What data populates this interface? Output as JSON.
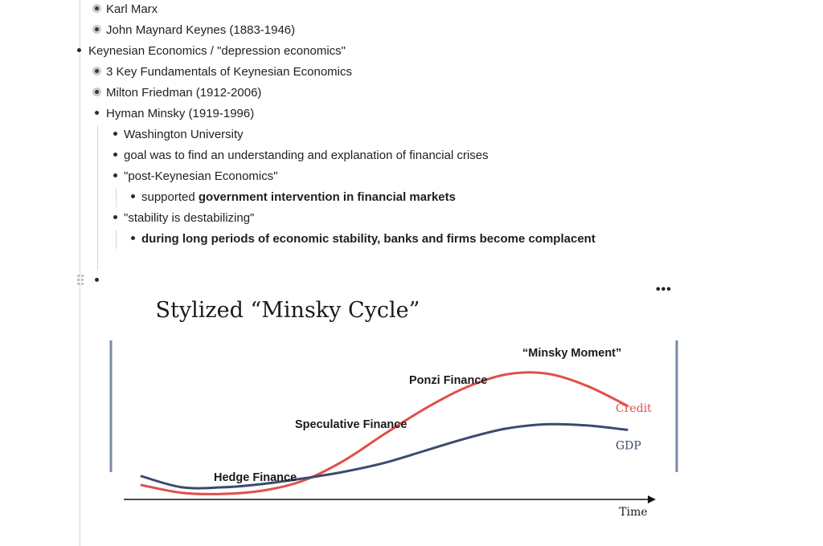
{
  "outline": {
    "items": [
      {
        "text": "Karl Marx",
        "collapsed": true
      },
      {
        "text": "John Maynard Keynes (1883-1946)",
        "collapsed": true
      },
      {
        "text": "Keynesian Economics / \"depression economics\"",
        "collapsed": false
      },
      {
        "text": "3 Key Fundamentals of Keynesian Economics",
        "collapsed": true
      },
      {
        "text": "Milton Friedman (1912-2006)",
        "collapsed": true
      },
      {
        "text": "Hyman Minsky (1919-1996)",
        "collapsed": false
      },
      {
        "text": "Washington University"
      },
      {
        "text": "goal was to find an understanding and explanation of financial crises"
      },
      {
        "text": "\"post-Keynesian Economics\""
      },
      {
        "prefix": "supported ",
        "bold": "government intervention in financial markets"
      },
      {
        "text": "\"stability is destabilizing\""
      },
      {
        "bold": "during long periods of economic stability, banks and firms become complacent"
      }
    ],
    "more_menu_label": "•••"
  },
  "chart_data": {
    "type": "line",
    "title": "Stylized “Minsky Cycle”",
    "xlabel": "Time",
    "ylabel": "",
    "grid": false,
    "stages": [
      "Hedge Finance",
      "Speculative Finance",
      "Ponzi Finance",
      "“Minsky Moment”"
    ],
    "x": [
      0,
      1,
      2,
      3,
      4,
      5,
      6,
      7,
      8,
      9,
      10,
      11,
      12
    ],
    "series": [
      {
        "name": "Credit",
        "color": "#e0504a",
        "values": [
          0.8,
          0.1,
          0.0,
          0.3,
          1.2,
          3.0,
          5.4,
          7.7,
          9.6,
          10.8,
          10.9,
          9.8,
          8.0
        ]
      },
      {
        "name": "GDP",
        "color": "#3d4a6e",
        "values": [
          1.6,
          0.6,
          0.6,
          0.9,
          1.4,
          2.0,
          2.8,
          3.9,
          5.0,
          5.9,
          6.3,
          6.2,
          5.8
        ]
      }
    ],
    "ylim": [
      -0.5,
      12
    ]
  }
}
